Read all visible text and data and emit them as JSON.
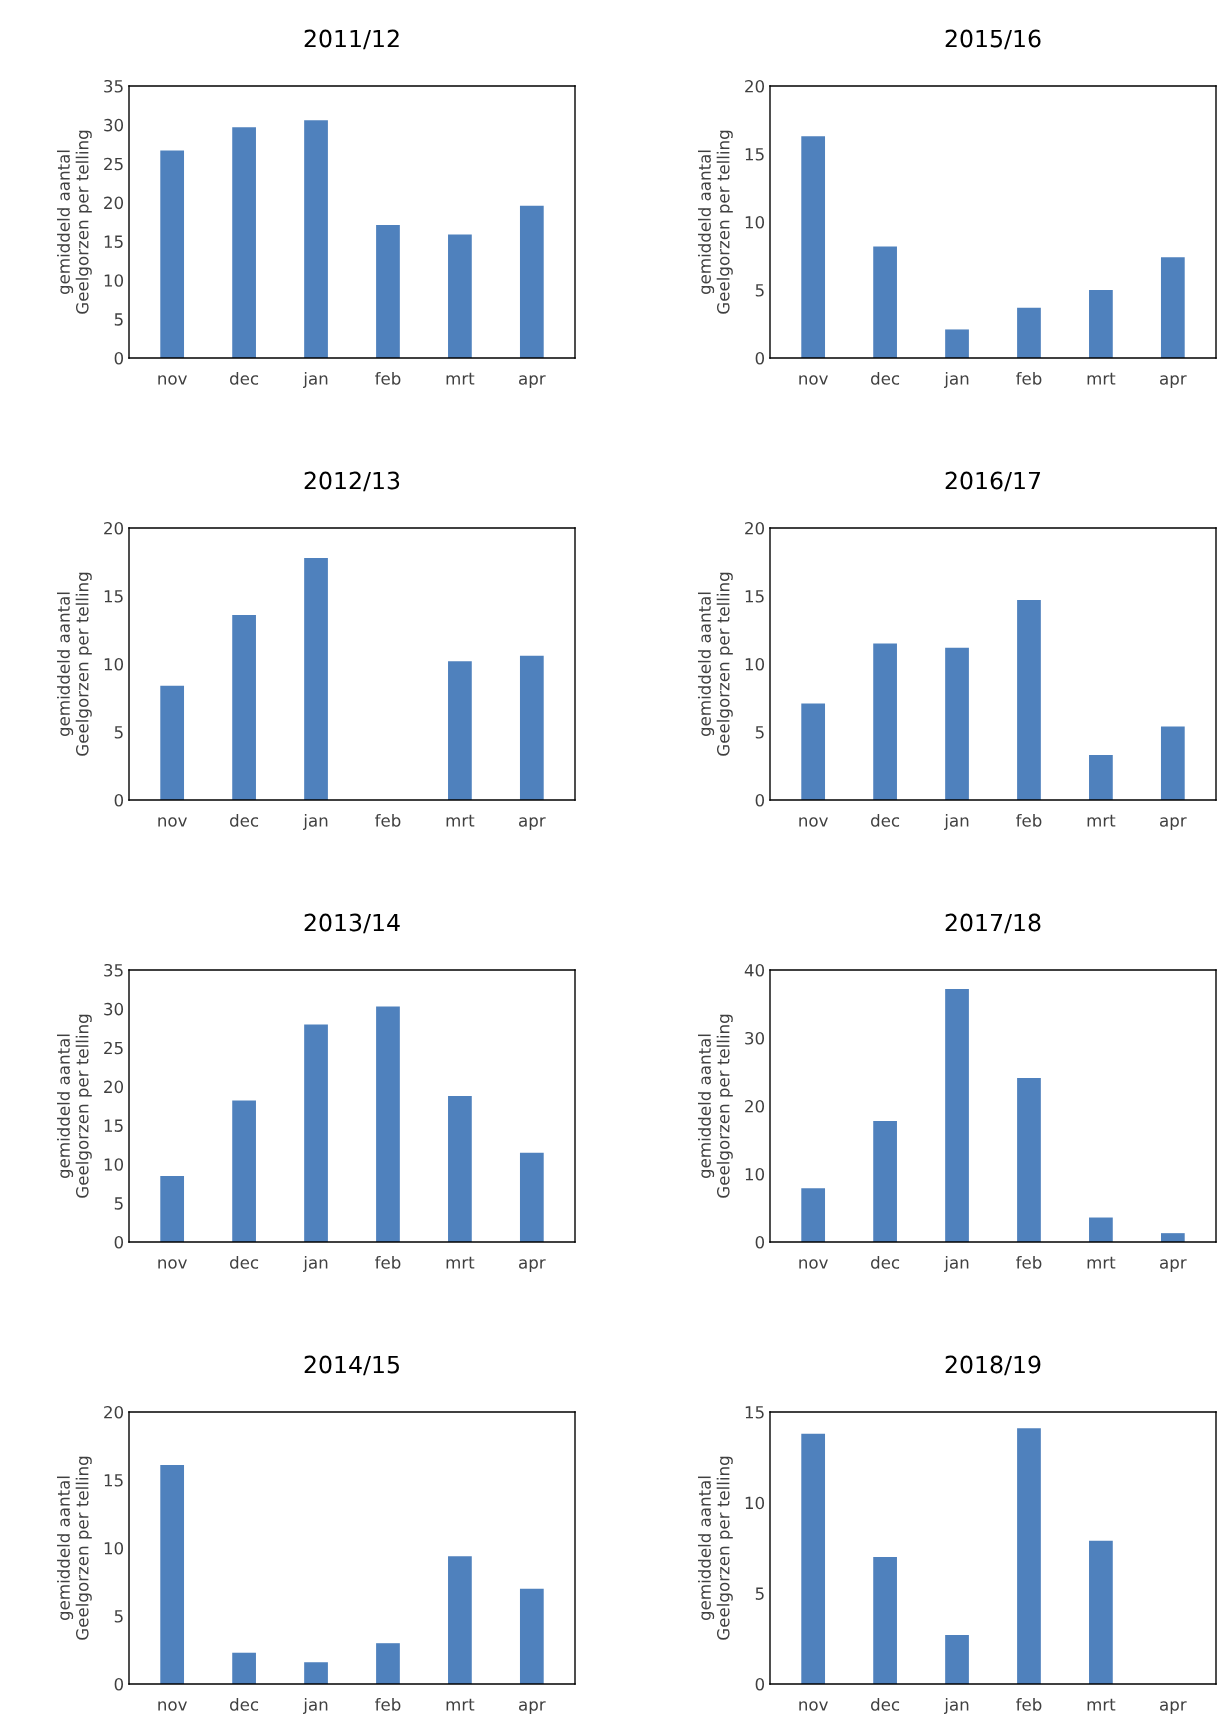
{
  "chart_data": [
    {
      "type": "bar",
      "title": "2011/12",
      "ylabel": "gemiddeld aantal\nGeelgorzen per telling",
      "categories": [
        "nov",
        "dec",
        "jan",
        "feb",
        "mrt",
        "apr"
      ],
      "values": [
        26.7,
        29.7,
        30.6,
        17.1,
        15.9,
        19.6
      ],
      "color": "#4f81bd",
      "ylim": [
        0,
        35
      ],
      "yticks": [
        0,
        5,
        10,
        15,
        20,
        25,
        30,
        35
      ],
      "grid": false
    },
    {
      "type": "bar",
      "title": "2015/16",
      "ylabel": "gemiddeld aantal\nGeelgorzen per telling",
      "categories": [
        "nov",
        "dec",
        "jan",
        "feb",
        "mrt",
        "apr"
      ],
      "values": [
        16.3,
        8.2,
        2.1,
        3.7,
        5.0,
        7.4
      ],
      "color": "#4f81bd",
      "ylim": [
        0,
        20
      ],
      "yticks": [
        0,
        5,
        10,
        15,
        20
      ],
      "grid": false
    },
    {
      "type": "bar",
      "title": "2012/13",
      "ylabel": "gemiddeld aantal\nGeelgorzen per telling",
      "categories": [
        "nov",
        "dec",
        "jan",
        "feb",
        "mrt",
        "apr"
      ],
      "values": [
        8.4,
        13.6,
        17.8,
        0,
        10.2,
        10.6
      ],
      "color": "#4f81bd",
      "ylim": [
        0,
        20
      ],
      "yticks": [
        0,
        5,
        10,
        15,
        20
      ],
      "grid": false
    },
    {
      "type": "bar",
      "title": "2016/17",
      "ylabel": "gemiddeld aantal\nGeelgorzen per telling",
      "categories": [
        "nov",
        "dec",
        "jan",
        "feb",
        "mrt",
        "apr"
      ],
      "values": [
        7.1,
        11.5,
        11.2,
        14.7,
        3.3,
        5.4
      ],
      "color": "#4f81bd",
      "ylim": [
        0,
        20
      ],
      "yticks": [
        0,
        5,
        10,
        15,
        20
      ],
      "grid": false
    },
    {
      "type": "bar",
      "title": "2013/14",
      "ylabel": "gemiddeld aantal\nGeelgorzen per telling",
      "categories": [
        "nov",
        "dec",
        "jan",
        "feb",
        "mrt",
        "apr"
      ],
      "values": [
        8.5,
        18.2,
        28.0,
        30.3,
        18.8,
        11.5
      ],
      "color": "#4f81bd",
      "ylim": [
        0,
        35
      ],
      "yticks": [
        0,
        5,
        10,
        15,
        20,
        25,
        30,
        35
      ],
      "grid": false
    },
    {
      "type": "bar",
      "title": "2017/18",
      "ylabel": "gemiddeld aantal\nGeelgorzen per telling",
      "categories": [
        "nov",
        "dec",
        "jan",
        "feb",
        "mrt",
        "apr"
      ],
      "values": [
        7.9,
        17.8,
        37.2,
        24.1,
        3.6,
        1.3
      ],
      "color": "#4f81bd",
      "ylim": [
        0,
        40
      ],
      "yticks": [
        0,
        10,
        20,
        30,
        40
      ],
      "grid": false
    },
    {
      "type": "bar",
      "title": "2014/15",
      "ylabel": "gemiddeld aantal\nGeelgorzen per telling",
      "categories": [
        "nov",
        "dec",
        "jan",
        "feb",
        "mrt",
        "apr"
      ],
      "values": [
        16.1,
        2.3,
        1.6,
        3.0,
        9.4,
        7.0
      ],
      "color": "#4f81bd",
      "ylim": [
        0,
        20
      ],
      "yticks": [
        0,
        5,
        10,
        15,
        20
      ],
      "grid": false
    },
    {
      "type": "bar",
      "title": "2018/19",
      "ylabel": "gemiddeld aantal\nGeelgorzen per telling",
      "categories": [
        "nov",
        "dec",
        "jan",
        "feb",
        "mrt",
        "apr"
      ],
      "values": [
        13.8,
        7.0,
        2.7,
        14.1,
        7.9,
        0
      ],
      "color": "#4f81bd",
      "ylim": [
        0,
        15
      ],
      "yticks": [
        0,
        5,
        10,
        15
      ],
      "grid": false
    }
  ]
}
